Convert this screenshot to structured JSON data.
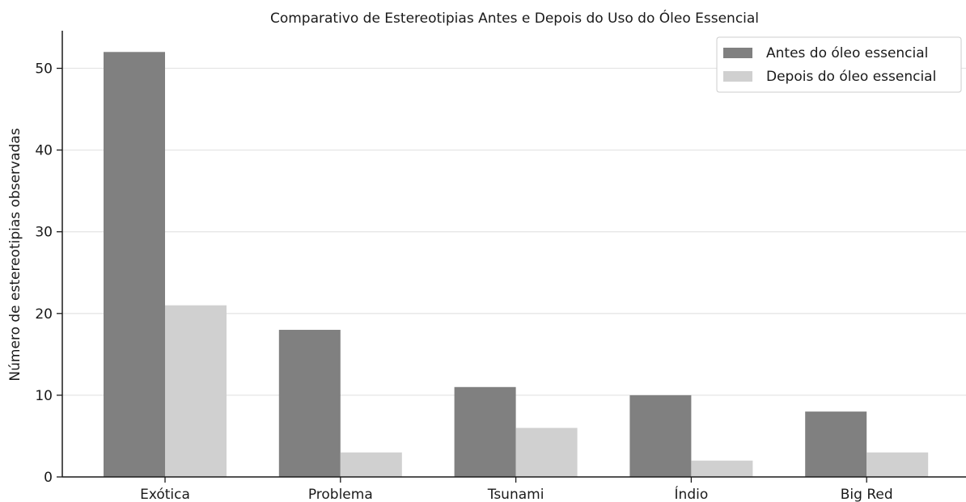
{
  "chart_data": {
    "type": "bar",
    "title": "Comparativo de Estereotipias Antes e Depois do Uso do Óleo Essencial",
    "xlabel": "",
    "ylabel": "Número de estereotipias observadas",
    "categories": [
      "Exótica",
      "Problema",
      "Tsunami",
      "Índio",
      "Big Red"
    ],
    "series": [
      {
        "name": "Antes do óleo essencial",
        "values": [
          52,
          18,
          11,
          10,
          8
        ],
        "color": "#808080"
      },
      {
        "name": "Depois do óleo essencial",
        "values": [
          21,
          3,
          6,
          2,
          3
        ],
        "color": "#d0d0d0"
      }
    ],
    "ylim": [
      0,
      54.6
    ],
    "yticks": [
      0,
      10,
      20,
      30,
      40,
      50
    ],
    "grid": "horizontal",
    "legend_position": "top-right"
  }
}
